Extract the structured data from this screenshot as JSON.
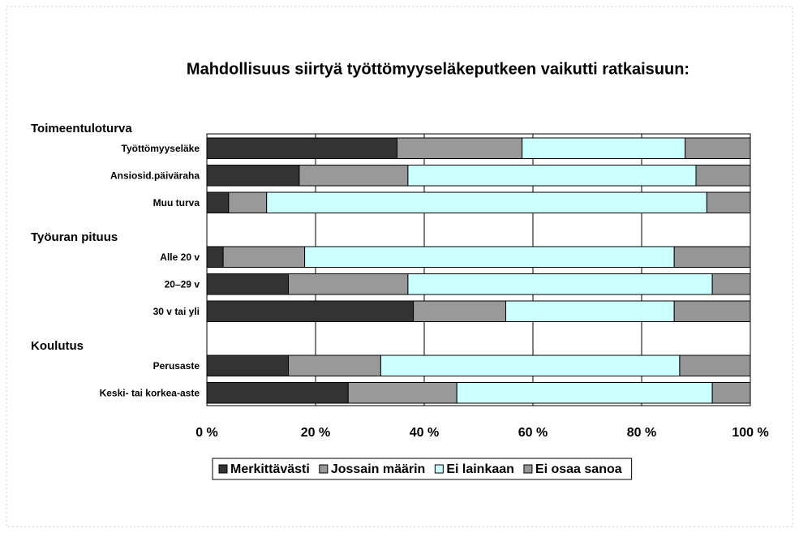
{
  "chart_data": {
    "type": "stacked-bar-horizontal",
    "title": "Mahdollisuus siirtyä työttömyyseläkeputkeen vaikutti ratkaisuun:",
    "groups": [
      "Toimeentuloturva",
      "Työuran pituus",
      "Koulutus"
    ],
    "categories": [
      "Työttömyyseläke",
      "Ansiosid.päiväraha",
      "Muu turva",
      null,
      "Alle 20 v",
      "20–29 v",
      "30 v tai yli",
      null,
      "Perusaste",
      "Keski- tai korkea-aste"
    ],
    "series": [
      {
        "name": "Merkittävästi",
        "color": "#333333",
        "values": [
          35,
          17,
          4,
          null,
          3,
          15,
          38,
          null,
          15,
          26
        ]
      },
      {
        "name": "Jossain määrin",
        "color": "#999999",
        "values": [
          23,
          20,
          7,
          null,
          15,
          22,
          17,
          null,
          17,
          20
        ]
      },
      {
        "name": "Ei lainkaan",
        "color": "#ccffff",
        "values": [
          30,
          53,
          81,
          null,
          68,
          56,
          31,
          null,
          55,
          47
        ]
      },
      {
        "name": "Ei osaa sanoa",
        "color": "#969696",
        "values": [
          12,
          10,
          8,
          null,
          14,
          7,
          14,
          null,
          13,
          7
        ]
      }
    ],
    "xlim": [
      0,
      100
    ],
    "xticks": [
      {
        "value": 0,
        "label": "0 %"
      },
      {
        "value": 20,
        "label": "20 %"
      },
      {
        "value": 40,
        "label": "40 %"
      },
      {
        "value": 60,
        "label": "60 %"
      },
      {
        "value": 80,
        "label": "80 %"
      },
      {
        "value": 100,
        "label": "100 %"
      }
    ],
    "grid": true,
    "legend": "bottom"
  }
}
